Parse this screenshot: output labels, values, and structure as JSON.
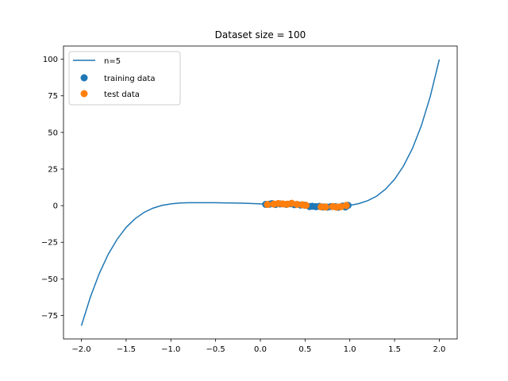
{
  "chart_data": {
    "type": "scatter",
    "title": "Dataset size = 100",
    "xlabel": "",
    "ylabel": "",
    "xlim": [
      -2.2,
      2.2
    ],
    "ylim": [
      -91,
      109
    ],
    "xticks": [
      -2.0,
      -1.5,
      -1.0,
      -0.5,
      0.0,
      0.5,
      1.0,
      1.5,
      2.0
    ],
    "xtick_labels": [
      "−2.0",
      "−1.5",
      "−1.0",
      "−0.5",
      "0.0",
      "0.5",
      "1.0",
      "1.5",
      "2.0"
    ],
    "yticks": [
      100,
      75,
      50,
      25,
      0,
      -25,
      -50,
      -75
    ],
    "ytick_labels": [
      "100",
      "75",
      "50",
      "25",
      "0",
      "−25",
      "−50",
      "−75"
    ],
    "legend_position": "upper-left",
    "grid": false,
    "colors": {
      "line": "#1f77b4",
      "training": "#1f77b4",
      "test": "#ff7f0e"
    },
    "line_series": {
      "name": "n=5",
      "x": [
        -2.0,
        -1.9,
        -1.8,
        -1.7,
        -1.6,
        -1.5,
        -1.4,
        -1.3,
        -1.2,
        -1.1,
        -1.0,
        -0.9,
        -0.8,
        -0.7,
        -0.6,
        -0.5,
        -0.4,
        -0.3,
        -0.2,
        -0.1,
        0.0,
        0.1,
        0.2,
        0.3,
        0.4,
        0.5,
        0.6,
        0.7,
        0.8,
        0.9,
        1.0,
        1.1,
        1.2,
        1.3,
        1.4,
        1.5,
        1.6,
        1.7,
        1.8,
        1.9,
        2.0
      ],
      "y": [
        -82,
        -62.5,
        -46.3,
        -33.2,
        -22.9,
        -14.8,
        -8.9,
        -4.6,
        -1.7,
        0.2,
        1.2,
        1.8,
        2.0,
        2.0,
        2.0,
        2.0,
        1.9,
        1.8,
        1.7,
        1.5,
        1.2,
        1.0,
        0.8,
        0.5,
        0.2,
        -0.1,
        -0.3,
        -0.5,
        -0.5,
        -0.3,
        0.2,
        1.4,
        3.4,
        6.5,
        11.3,
        18.0,
        27.1,
        39.1,
        54.7,
        74.8,
        99.8
      ]
    },
    "scatter_series": [
      {
        "name": "training data",
        "x": [
          0.06,
          0.1,
          0.13,
          0.17,
          0.22,
          0.29,
          0.34,
          0.38,
          0.45,
          0.5,
          0.55,
          0.58,
          0.62,
          0.66,
          0.7,
          0.75,
          0.79,
          0.84,
          0.87,
          0.92,
          0.95,
          0.98
        ],
        "y": [
          0.9,
          1.0,
          1.4,
          0.8,
          1.2,
          0.9,
          1.3,
          0.7,
          0.4,
          0.3,
          -0.6,
          -0.4,
          -0.7,
          -0.5,
          -0.9,
          -1.0,
          -0.6,
          -0.7,
          -1.1,
          -0.3,
          -0.9,
          0.2
        ]
      },
      {
        "name": "test data",
        "x": [
          0.08,
          0.15,
          0.2,
          0.25,
          0.3,
          0.35,
          0.41,
          0.47,
          0.51,
          0.68,
          0.73,
          0.81,
          0.85,
          0.9,
          0.96
        ],
        "y": [
          0.8,
          1.1,
          1.5,
          1.2,
          1.0,
          1.6,
          0.9,
          0.6,
          0.2,
          -0.8,
          -0.9,
          -0.6,
          -1.0,
          -0.7,
          0.1
        ]
      }
    ]
  }
}
